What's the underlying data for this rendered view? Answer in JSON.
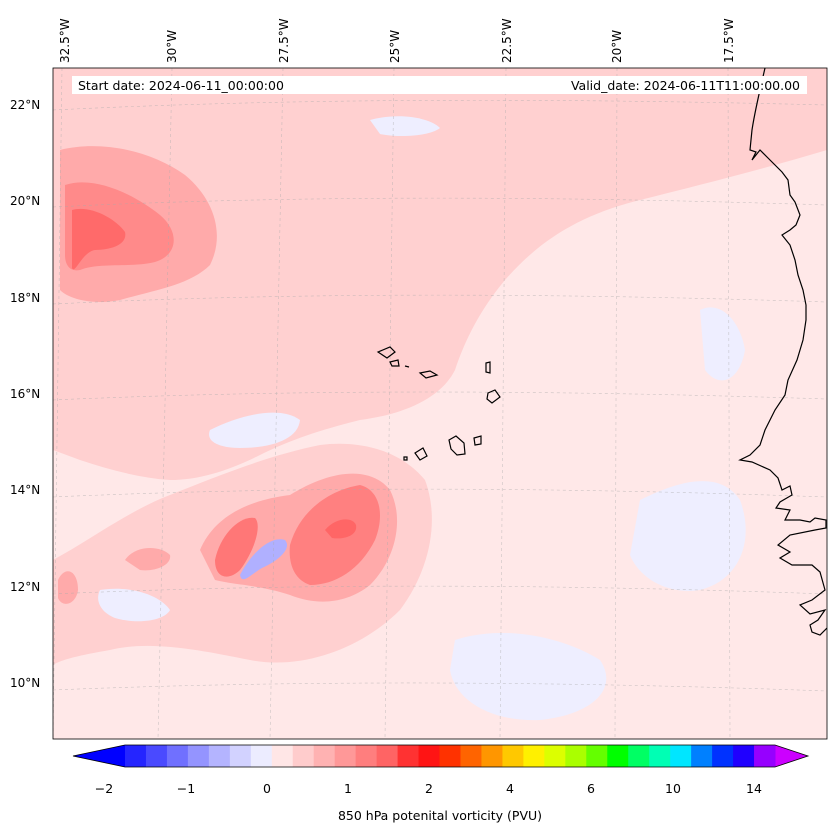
{
  "header": {
    "start_date": "Start date: 2024-06-11_00:00:00",
    "valid_date": "Valid_date: 2024-06-11T11:00:00.00"
  },
  "map": {
    "projection": "conic",
    "lon_labels": [
      "32.5°W",
      "30°W",
      "27.5°W",
      "25°W",
      "22.5°W",
      "20°W",
      "17.5°W"
    ],
    "lat_labels": [
      "22°N",
      "20°N",
      "18°N",
      "16°N",
      "14°N",
      "12°N",
      "10°N"
    ],
    "features": [
      "Cape Verde islands",
      "West African coastline"
    ]
  },
  "colorbar": {
    "label": "850 hPa potenital vorticity (PVU)",
    "ticks": [
      "−2",
      "−1",
      "0",
      "1",
      "2",
      "4",
      "6",
      "10",
      "14"
    ],
    "colors": [
      "#0000ff",
      "#2525ff",
      "#4a4aff",
      "#7070ff",
      "#9494ff",
      "#b4b4ff",
      "#d2d2ff",
      "#ececff",
      "#ffe6e6",
      "#ffcccc",
      "#ffb2b2",
      "#ff9898",
      "#ff7e7e",
      "#ff6464",
      "#ff3232",
      "#ff1414",
      "#ff3200",
      "#ff6400",
      "#ff9600",
      "#ffc800",
      "#fff000",
      "#dcff00",
      "#aaff00",
      "#64ff00",
      "#00ff00",
      "#00ff64",
      "#00ffb4",
      "#00e6ff",
      "#0080ff",
      "#0032ff",
      "#2000ff",
      "#9600ff",
      "#cc00ff"
    ]
  },
  "colors": {
    "background_field": "#ffe8e8",
    "light_pink": "#ffd0d0",
    "medium_pink": "#ffaaaa",
    "red": "#ff7a7a",
    "dark_red": "#ff5c5c",
    "light_blue": "#eeeeff",
    "blue": "#c8c8ff",
    "medium_blue": "#9a9aff"
  }
}
